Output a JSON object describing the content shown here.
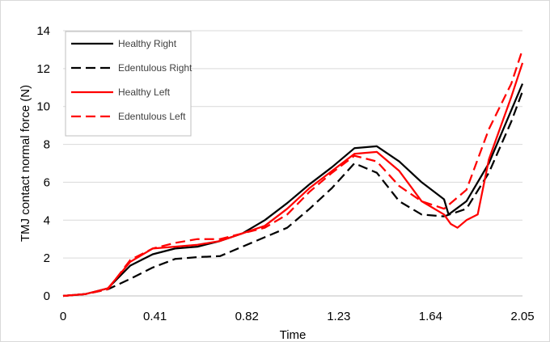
{
  "chart_data": {
    "type": "line",
    "title": "",
    "xlabel": "Time",
    "ylabel": "TMJ contact normal force (N)",
    "xlim": [
      0,
      2.05
    ],
    "ylim": [
      0,
      14
    ],
    "x_ticks": [
      "0",
      "0.41",
      "0.82",
      "1.23",
      "1.64",
      "2.05"
    ],
    "x_tick_values": [
      0,
      0.41,
      0.82,
      1.23,
      1.64,
      2.05
    ],
    "y_ticks": [
      "0",
      "2",
      "4",
      "6",
      "8",
      "10",
      "12",
      "14"
    ],
    "y_tick_values": [
      0,
      2,
      4,
      6,
      8,
      10,
      12,
      14
    ],
    "grid": "horizontal",
    "legend_position": "top-left",
    "series": [
      {
        "name": "Healthy Right",
        "color": "#000000",
        "dash": "solid",
        "points": [
          [
            0,
            0
          ],
          [
            0.1,
            0.1
          ],
          [
            0.2,
            0.4
          ],
          [
            0.3,
            1.6
          ],
          [
            0.4,
            2.2
          ],
          [
            0.5,
            2.5
          ],
          [
            0.6,
            2.6
          ],
          [
            0.7,
            2.9
          ],
          [
            0.8,
            3.3
          ],
          [
            0.9,
            4.0
          ],
          [
            1.0,
            4.9
          ],
          [
            1.1,
            5.9
          ],
          [
            1.2,
            6.8
          ],
          [
            1.3,
            7.8
          ],
          [
            1.4,
            7.9
          ],
          [
            1.5,
            7.1
          ],
          [
            1.6,
            6.0
          ],
          [
            1.7,
            5.1
          ],
          [
            1.72,
            4.3
          ],
          [
            1.8,
            5.0
          ],
          [
            1.9,
            7.0
          ],
          [
            2.0,
            9.8
          ],
          [
            2.05,
            11.2
          ]
        ]
      },
      {
        "name": "Edentulous Right",
        "color": "#000000",
        "dash": "dashed",
        "points": [
          [
            0,
            0
          ],
          [
            0.1,
            0.1
          ],
          [
            0.2,
            0.35
          ],
          [
            0.3,
            0.9
          ],
          [
            0.4,
            1.5
          ],
          [
            0.5,
            1.95
          ],
          [
            0.6,
            2.05
          ],
          [
            0.7,
            2.1
          ],
          [
            0.8,
            2.6
          ],
          [
            0.9,
            3.1
          ],
          [
            1.0,
            3.6
          ],
          [
            1.1,
            4.6
          ],
          [
            1.2,
            5.7
          ],
          [
            1.3,
            7.0
          ],
          [
            1.4,
            6.5
          ],
          [
            1.5,
            5.0
          ],
          [
            1.6,
            4.3
          ],
          [
            1.7,
            4.2
          ],
          [
            1.8,
            4.6
          ],
          [
            1.9,
            6.5
          ],
          [
            2.0,
            9.2
          ],
          [
            2.05,
            10.8
          ]
        ]
      },
      {
        "name": "Healthy Left",
        "color": "#ff0000",
        "dash": "solid",
        "points": [
          [
            0,
            0
          ],
          [
            0.1,
            0.1
          ],
          [
            0.2,
            0.4
          ],
          [
            0.3,
            1.8
          ],
          [
            0.4,
            2.5
          ],
          [
            0.5,
            2.6
          ],
          [
            0.6,
            2.7
          ],
          [
            0.7,
            2.9
          ],
          [
            0.8,
            3.3
          ],
          [
            0.9,
            3.7
          ],
          [
            1.0,
            4.6
          ],
          [
            1.1,
            5.7
          ],
          [
            1.2,
            6.6
          ],
          [
            1.3,
            7.5
          ],
          [
            1.4,
            7.6
          ],
          [
            1.5,
            6.6
          ],
          [
            1.6,
            5.0
          ],
          [
            1.7,
            4.3
          ],
          [
            1.73,
            3.8
          ],
          [
            1.76,
            3.6
          ],
          [
            1.8,
            4.0
          ],
          [
            1.85,
            4.3
          ],
          [
            1.9,
            7.2
          ],
          [
            2.0,
            10.5
          ],
          [
            2.05,
            12.3
          ]
        ]
      },
      {
        "name": "Edentulous Left",
        "color": "#ff0000",
        "dash": "dashed",
        "points": [
          [
            0,
            0
          ],
          [
            0.1,
            0.1
          ],
          [
            0.2,
            0.35
          ],
          [
            0.3,
            1.9
          ],
          [
            0.4,
            2.5
          ],
          [
            0.5,
            2.8
          ],
          [
            0.6,
            3.0
          ],
          [
            0.7,
            3.0
          ],
          [
            0.8,
            3.3
          ],
          [
            0.9,
            3.6
          ],
          [
            1.0,
            4.3
          ],
          [
            1.1,
            5.5
          ],
          [
            1.2,
            6.5
          ],
          [
            1.3,
            7.4
          ],
          [
            1.4,
            7.1
          ],
          [
            1.5,
            5.8
          ],
          [
            1.6,
            5.0
          ],
          [
            1.7,
            4.6
          ],
          [
            1.8,
            5.6
          ],
          [
            1.9,
            8.8
          ],
          [
            2.0,
            11.2
          ],
          [
            2.05,
            13.0
          ]
        ]
      }
    ]
  }
}
